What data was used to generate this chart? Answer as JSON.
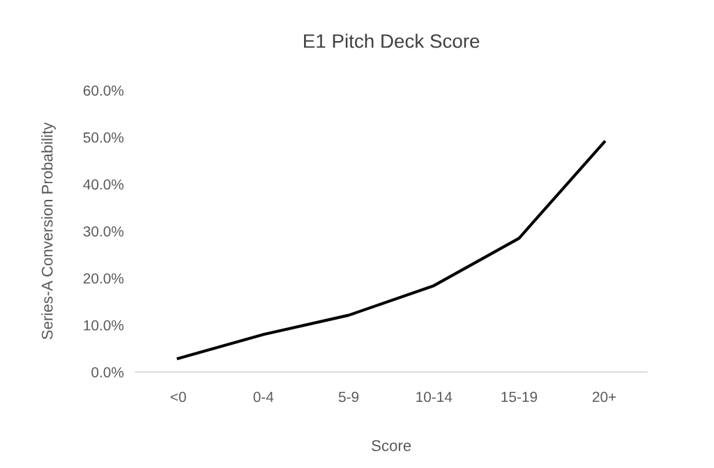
{
  "chart_data": {
    "type": "line",
    "title": "E1 Pitch Deck Score",
    "xlabel": "Score",
    "ylabel": "Series-A Conversion Probability",
    "categories": [
      "<0",
      "0-4",
      "5-9",
      "10-14",
      "15-19",
      "20+"
    ],
    "series": [
      {
        "color": "#000000",
        "values": [
          2.9,
          8.0,
          12.1,
          18.4,
          28.5,
          49.0
        ]
      }
    ],
    "ylim": [
      0,
      60
    ],
    "yticks": [
      {
        "value": 0,
        "label": "0.0%"
      },
      {
        "value": 10,
        "label": "10.0%"
      },
      {
        "value": 20,
        "label": "20.0%"
      },
      {
        "value": 30,
        "label": "30.0%"
      },
      {
        "value": 40,
        "label": "40.0%"
      },
      {
        "value": 50,
        "label": "50.0%"
      },
      {
        "value": 60,
        "label": "60.0%"
      }
    ],
    "grid": false,
    "marker": "none",
    "line_style": "solid"
  }
}
